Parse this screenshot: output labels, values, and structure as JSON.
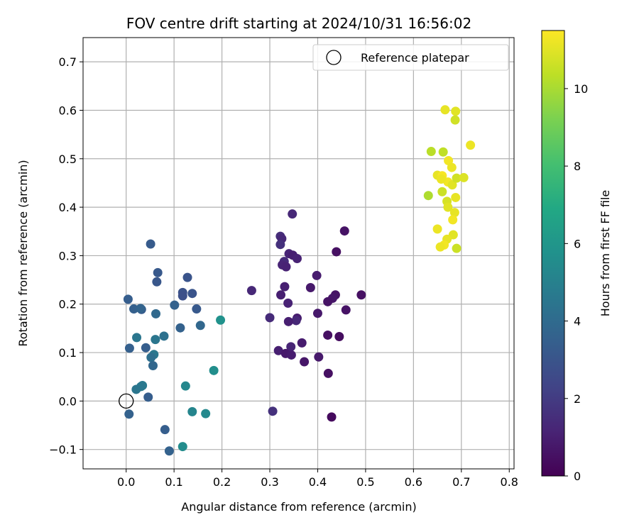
{
  "chart_data": {
    "type": "scatter",
    "title": "FOV centre drift starting at 2024/10/31 16:56:02",
    "xlabel": "Angular distance from reference (arcmin)",
    "ylabel": "Rotation from reference (arcmin)",
    "xlim": [
      -0.09,
      0.81
    ],
    "ylim": [
      -0.14,
      0.75
    ],
    "xticks": [
      0.0,
      0.1,
      0.2,
      0.3,
      0.4,
      0.5,
      0.6,
      0.7,
      0.8
    ],
    "xtick_labels": [
      "0.0",
      "0.1",
      "0.2",
      "0.3",
      "0.4",
      "0.5",
      "0.6",
      "0.7",
      "0.8"
    ],
    "yticks": [
      -0.1,
      0.0,
      0.1,
      0.2,
      0.3,
      0.4,
      0.5,
      0.6,
      0.7
    ],
    "ytick_labels": [
      "−0.1",
      "0.0",
      "0.1",
      "0.2",
      "0.3",
      "0.4",
      "0.5",
      "0.6",
      "0.7"
    ],
    "grid": true,
    "legend": {
      "placement": "top-right",
      "entries": [
        "Reference platepar"
      ]
    },
    "colorbar": {
      "label": "Hours from first FF file",
      "colormap": "viridis",
      "range": [
        0,
        11.5
      ],
      "ticks": [
        0,
        2,
        4,
        6,
        8,
        10
      ],
      "tick_labels": [
        "0",
        "2",
        "4",
        "6",
        "8",
        "10"
      ]
    },
    "reference_point": {
      "x": 0.0,
      "y": 0.0
    },
    "series": [
      {
        "points": [
          {
            "x": 0.347,
            "y": 0.386,
            "h": 1.3
          },
          {
            "x": 0.322,
            "y": 0.34,
            "h": 1.5
          },
          {
            "x": 0.325,
            "y": 0.335,
            "h": 1.3
          },
          {
            "x": 0.322,
            "y": 0.323,
            "h": 1.6
          },
          {
            "x": 0.34,
            "y": 0.304,
            "h": 1.2
          },
          {
            "x": 0.348,
            "y": 0.301,
            "h": 1.0
          },
          {
            "x": 0.357,
            "y": 0.294,
            "h": 1.1
          },
          {
            "x": 0.33,
            "y": 0.288,
            "h": 1.4
          },
          {
            "x": 0.326,
            "y": 0.281,
            "h": 1.2
          },
          {
            "x": 0.334,
            "y": 0.277,
            "h": 1.1
          },
          {
            "x": 0.398,
            "y": 0.259,
            "h": 0.9
          },
          {
            "x": 0.331,
            "y": 0.236,
            "h": 1.0
          },
          {
            "x": 0.385,
            "y": 0.234,
            "h": 0.8
          },
          {
            "x": 0.262,
            "y": 0.228,
            "h": 1.3
          },
          {
            "x": 0.323,
            "y": 0.219,
            "h": 1.0
          },
          {
            "x": 0.338,
            "y": 0.202,
            "h": 1.1
          },
          {
            "x": 0.4,
            "y": 0.181,
            "h": 0.8
          },
          {
            "x": 0.3,
            "y": 0.172,
            "h": 1.4
          },
          {
            "x": 0.357,
            "y": 0.171,
            "h": 0.9
          },
          {
            "x": 0.355,
            "y": 0.166,
            "h": 1.3
          },
          {
            "x": 0.339,
            "y": 0.164,
            "h": 1.0
          },
          {
            "x": 0.344,
            "y": 0.112,
            "h": 1.2
          },
          {
            "x": 0.367,
            "y": 0.12,
            "h": 0.9
          },
          {
            "x": 0.318,
            "y": 0.104,
            "h": 1.0
          },
          {
            "x": 0.333,
            "y": 0.098,
            "h": 0.8
          },
          {
            "x": 0.345,
            "y": 0.095,
            "h": 0.9
          },
          {
            "x": 0.372,
            "y": 0.081,
            "h": 0.7
          },
          {
            "x": 0.402,
            "y": 0.091,
            "h": 0.8
          },
          {
            "x": 0.306,
            "y": -0.021,
            "h": 1.6
          },
          {
            "x": 0.456,
            "y": 0.351,
            "h": 0.6
          },
          {
            "x": 0.439,
            "y": 0.308,
            "h": 0.5
          },
          {
            "x": 0.491,
            "y": 0.219,
            "h": 0.5
          },
          {
            "x": 0.437,
            "y": 0.219,
            "h": 0.6
          },
          {
            "x": 0.431,
            "y": 0.212,
            "h": 0.7
          },
          {
            "x": 0.421,
            "y": 0.205,
            "h": 0.6
          },
          {
            "x": 0.459,
            "y": 0.188,
            "h": 0.6
          },
          {
            "x": 0.421,
            "y": 0.136,
            "h": 0.5
          },
          {
            "x": 0.445,
            "y": 0.133,
            "h": 0.4
          },
          {
            "x": 0.422,
            "y": 0.057,
            "h": 0.5
          },
          {
            "x": 0.429,
            "y": -0.033,
            "h": 0.3
          },
          {
            "x": 0.051,
            "y": 0.324,
            "h": 3.3
          },
          {
            "x": 0.066,
            "y": 0.265,
            "h": 3.2
          },
          {
            "x": 0.128,
            "y": 0.255,
            "h": 3.0
          },
          {
            "x": 0.064,
            "y": 0.246,
            "h": 3.1
          },
          {
            "x": 0.118,
            "y": 0.224,
            "h": 2.9
          },
          {
            "x": 0.138,
            "y": 0.222,
            "h": 3.0
          },
          {
            "x": 0.118,
            "y": 0.217,
            "h": 2.8
          },
          {
            "x": 0.004,
            "y": 0.21,
            "h": 3.4
          },
          {
            "x": 0.101,
            "y": 0.198,
            "h": 3.6
          },
          {
            "x": 0.016,
            "y": 0.19,
            "h": 3.5
          },
          {
            "x": 0.032,
            "y": 0.189,
            "h": 3.3
          },
          {
            "x": 0.147,
            "y": 0.19,
            "h": 3.2
          },
          {
            "x": 0.03,
            "y": 0.191,
            "h": 3.7
          },
          {
            "x": 0.062,
            "y": 0.18,
            "h": 3.9
          },
          {
            "x": 0.155,
            "y": 0.156,
            "h": 3.8
          },
          {
            "x": 0.113,
            "y": 0.151,
            "h": 3.6
          },
          {
            "x": 0.079,
            "y": 0.134,
            "h": 4.3
          },
          {
            "x": 0.022,
            "y": 0.131,
            "h": 4.5
          },
          {
            "x": 0.061,
            "y": 0.127,
            "h": 4.5
          },
          {
            "x": 0.007,
            "y": 0.109,
            "h": 3.5
          },
          {
            "x": 0.041,
            "y": 0.11,
            "h": 3.4
          },
          {
            "x": 0.058,
            "y": 0.096,
            "h": 4.6
          },
          {
            "x": 0.052,
            "y": 0.09,
            "h": 4.2
          },
          {
            "x": 0.056,
            "y": 0.073,
            "h": 3.8
          },
          {
            "x": 0.034,
            "y": 0.032,
            "h": 4.7
          },
          {
            "x": 0.031,
            "y": 0.03,
            "h": 4.6
          },
          {
            "x": 0.021,
            "y": 0.024,
            "h": 4.5
          },
          {
            "x": 0.046,
            "y": 0.008,
            "h": 3.4
          },
          {
            "x": 0.006,
            "y": -0.027,
            "h": 3.6
          },
          {
            "x": 0.081,
            "y": -0.059,
            "h": 3.4
          },
          {
            "x": 0.09,
            "y": -0.103,
            "h": 3.6
          },
          {
            "x": 0.197,
            "y": 0.167,
            "h": 5.8
          },
          {
            "x": 0.183,
            "y": 0.063,
            "h": 5.6
          },
          {
            "x": 0.124,
            "y": 0.031,
            "h": 5.3
          },
          {
            "x": 0.138,
            "y": -0.022,
            "h": 5.2
          },
          {
            "x": 0.166,
            "y": -0.026,
            "h": 5.4
          },
          {
            "x": 0.118,
            "y": -0.094,
            "h": 5.5
          },
          {
            "x": 0.666,
            "y": 0.601,
            "h": 11.1
          },
          {
            "x": 0.688,
            "y": 0.598,
            "h": 11.0
          },
          {
            "x": 0.687,
            "y": 0.58,
            "h": 10.7
          },
          {
            "x": 0.719,
            "y": 0.528,
            "h": 11.2
          },
          {
            "x": 0.637,
            "y": 0.515,
            "h": 10.3
          },
          {
            "x": 0.662,
            "y": 0.514,
            "h": 10.4
          },
          {
            "x": 0.673,
            "y": 0.496,
            "h": 11.3
          },
          {
            "x": 0.68,
            "y": 0.482,
            "h": 11.2
          },
          {
            "x": 0.65,
            "y": 0.466,
            "h": 11.1
          },
          {
            "x": 0.66,
            "y": 0.465,
            "h": 11.4
          },
          {
            "x": 0.672,
            "y": 0.452,
            "h": 11.3
          },
          {
            "x": 0.681,
            "y": 0.446,
            "h": 11.0
          },
          {
            "x": 0.658,
            "y": 0.458,
            "h": 11.2
          },
          {
            "x": 0.69,
            "y": 0.46,
            "h": 10.7
          },
          {
            "x": 0.705,
            "y": 0.461,
            "h": 10.9
          },
          {
            "x": 0.66,
            "y": 0.432,
            "h": 10.6
          },
          {
            "x": 0.631,
            "y": 0.424,
            "h": 10.1
          },
          {
            "x": 0.688,
            "y": 0.42,
            "h": 11.1
          },
          {
            "x": 0.67,
            "y": 0.412,
            "h": 10.8
          },
          {
            "x": 0.672,
            "y": 0.4,
            "h": 11.0
          },
          {
            "x": 0.686,
            "y": 0.389,
            "h": 11.1
          },
          {
            "x": 0.682,
            "y": 0.374,
            "h": 11.3
          },
          {
            "x": 0.65,
            "y": 0.355,
            "h": 11.2
          },
          {
            "x": 0.683,
            "y": 0.343,
            "h": 11.0
          },
          {
            "x": 0.67,
            "y": 0.334,
            "h": 11.1
          },
          {
            "x": 0.664,
            "y": 0.322,
            "h": 11.3
          },
          {
            "x": 0.656,
            "y": 0.318,
            "h": 11.2
          },
          {
            "x": 0.69,
            "y": 0.315,
            "h": 10.6
          }
        ]
      }
    ]
  }
}
